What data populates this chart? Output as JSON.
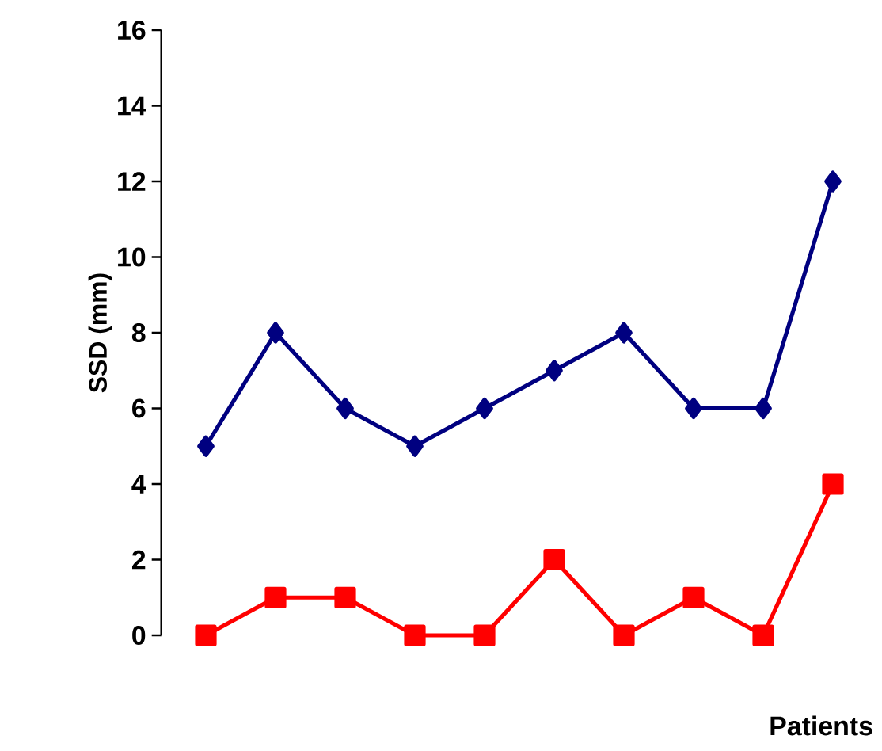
{
  "chart_data": {
    "type": "line",
    "xlabel": "Patients",
    "ylabel": "SSD (mm)",
    "categories": [
      null,
      null,
      null,
      null,
      null,
      null,
      null,
      null,
      null,
      null
    ],
    "series": [
      {
        "color": "#000080",
        "marker": "diamond",
        "values": [
          5,
          8,
          6,
          5,
          6,
          7,
          8,
          6,
          6,
          12
        ]
      },
      {
        "color": "#ff0000",
        "marker": "square",
        "values": [
          0,
          1,
          1,
          0,
          0,
          2,
          0,
          1,
          0,
          4
        ]
      }
    ],
    "ylim": [
      0,
      16
    ],
    "yticks": [
      0,
      2,
      4,
      6,
      8,
      10,
      12,
      14,
      16
    ],
    "tick_labels": "y",
    "grid": false,
    "line_style": "solid"
  }
}
